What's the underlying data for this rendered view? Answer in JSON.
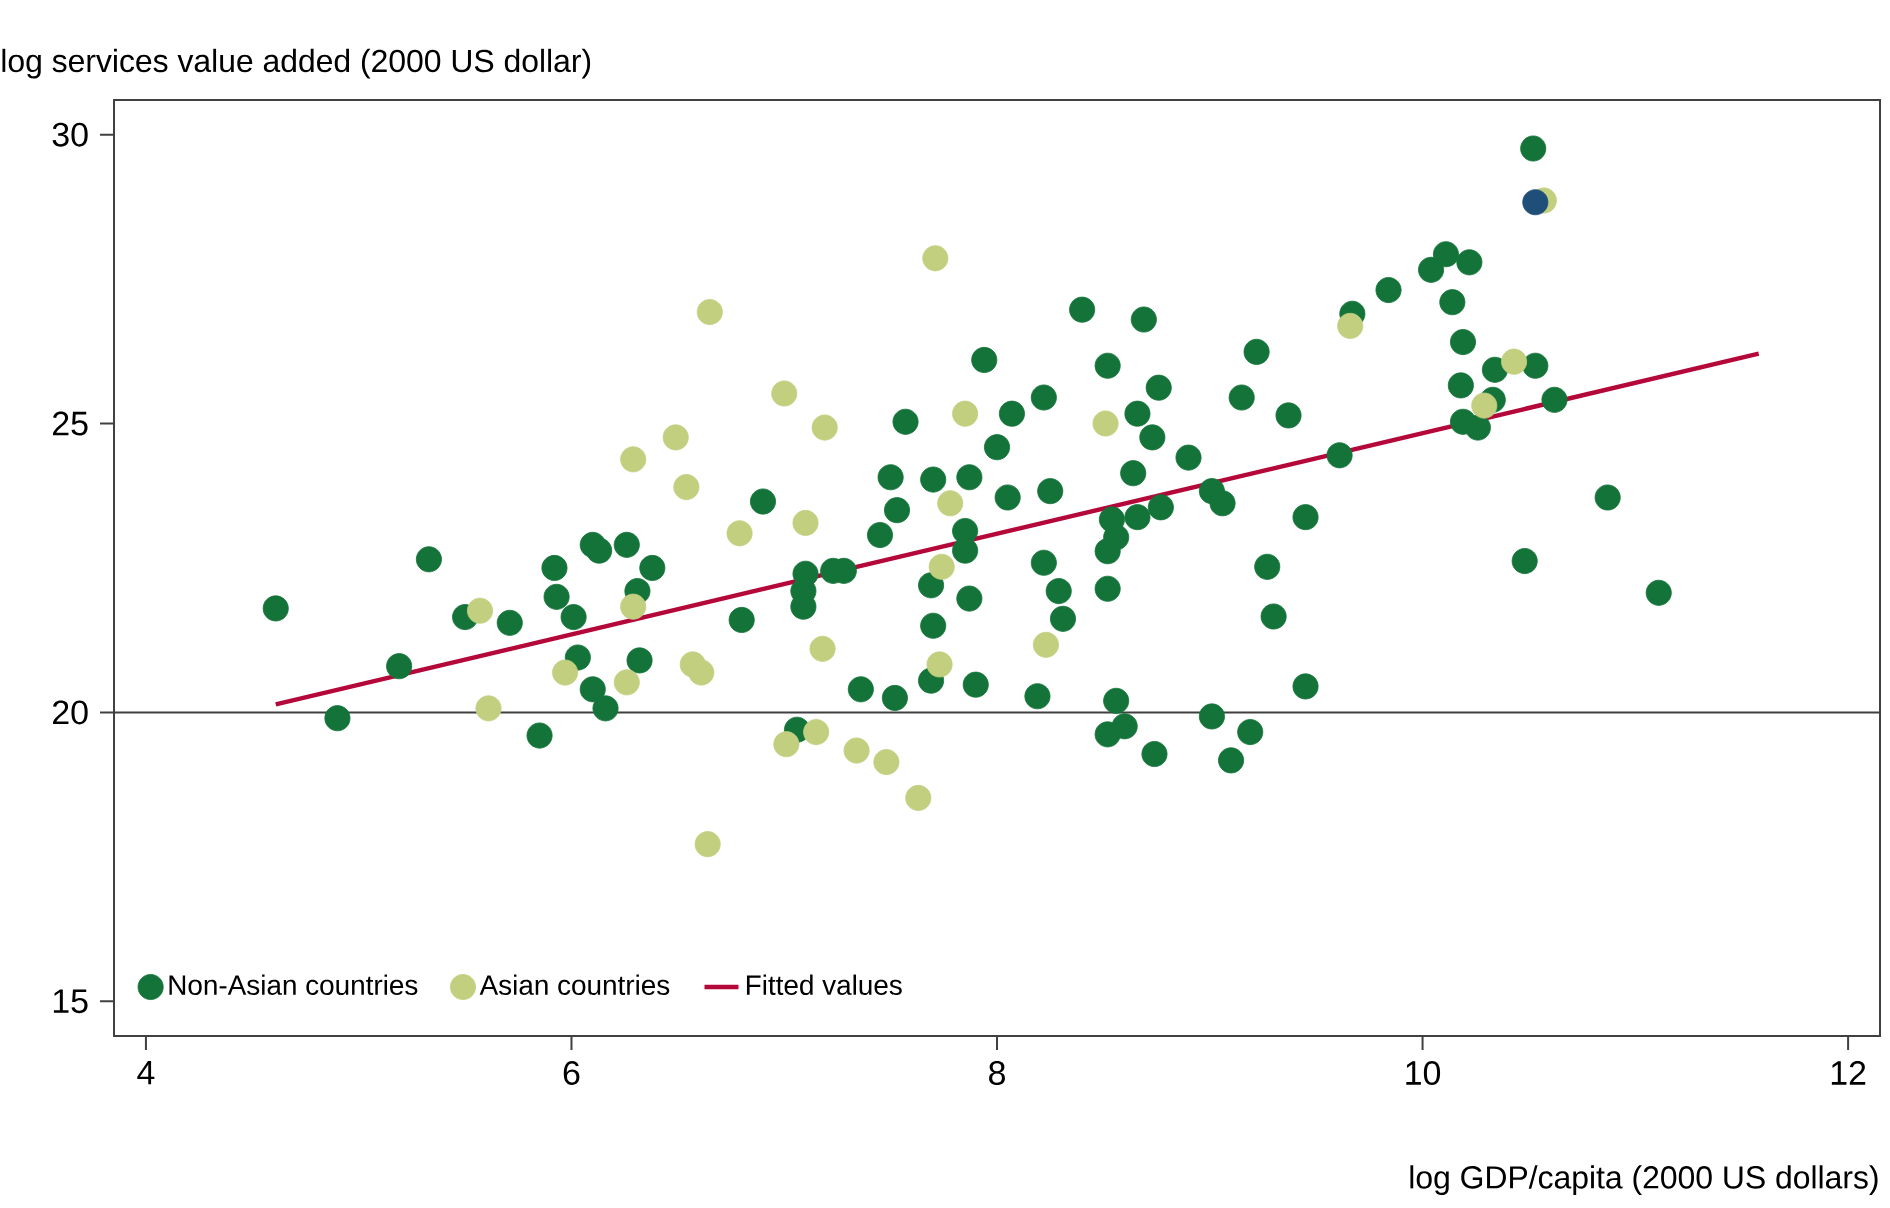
{
  "chart_data": {
    "type": "scatter",
    "xlabel": "log GDP/capita (2000 US dollars)",
    "ylabel": "log services value added (2000 US dollar)",
    "xlim": [
      3.85,
      12.15
    ],
    "ylim": [
      14.4,
      30.6
    ],
    "xticks": [
      4,
      6,
      8,
      10,
      12
    ],
    "yticks": [
      15,
      20,
      25,
      30
    ],
    "legend": "bottom left",
    "marker": "circle",
    "ref_lines": [
      {
        "axis": "y",
        "value": 20,
        "color": "#404040"
      }
    ],
    "series": [
      {
        "name": "Non-Asian countries",
        "color": "#137339",
        "x": [
          4.61,
          4.9,
          5.19,
          5.33,
          5.5,
          5.71,
          5.85,
          5.92,
          5.93,
          6.01,
          6.03,
          6.1,
          6.1,
          6.13,
          6.16,
          6.26,
          6.31,
          6.38,
          6.32,
          6.9,
          6.8,
          7.1,
          7.09,
          7.09,
          7.06,
          7.23,
          7.28,
          7.36,
          7.52,
          7.45,
          7.5,
          7.53,
          7.57,
          7.69,
          7.7,
          7.69,
          7.7,
          7.85,
          7.85,
          7.87,
          7.87,
          7.9,
          7.94,
          8.0,
          8.07,
          8.05,
          8.22,
          8.25,
          8.22,
          8.29,
          8.31,
          8.19,
          8.4,
          8.52,
          8.54,
          8.56,
          8.52,
          8.52,
          8.56,
          8.52,
          8.6,
          8.69,
          8.66,
          8.76,
          8.73,
          8.64,
          8.66,
          8.77,
          8.74,
          8.9,
          9.01,
          9.06,
          9.01,
          9.1,
          9.19,
          9.15,
          9.22,
          9.37,
          9.27,
          9.3,
          9.45,
          9.45,
          9.61,
          9.67,
          9.84,
          10.04,
          10.11,
          10.22,
          10.14,
          10.19,
          10.18,
          10.34,
          10.53,
          10.33,
          10.62,
          10.19,
          10.26,
          10.52,
          10.87,
          10.48,
          11.11
        ],
        "values": [
          21.8,
          19.9,
          20.8,
          22.65,
          21.65,
          21.55,
          19.6,
          22.5,
          22.0,
          21.65,
          20.95,
          20.4,
          22.9,
          22.8,
          20.07,
          22.9,
          22.1,
          22.5,
          20.9,
          23.65,
          21.6,
          22.4,
          22.1,
          21.83,
          19.7,
          22.45,
          22.45,
          20.4,
          20.25,
          23.07,
          24.07,
          23.5,
          25.03,
          22.2,
          21.5,
          20.55,
          24.03,
          23.14,
          22.8,
          21.97,
          24.07,
          20.48,
          26.1,
          24.59,
          25.17,
          23.72,
          25.45,
          23.83,
          22.59,
          22.1,
          21.62,
          20.28,
          26.97,
          26.0,
          23.34,
          23.03,
          22.79,
          22.14,
          20.2,
          19.62,
          19.76,
          26.8,
          25.17,
          25.62,
          24.76,
          24.14,
          23.38,
          23.55,
          19.28,
          24.41,
          23.83,
          23.62,
          19.93,
          19.17,
          19.66,
          25.45,
          26.24,
          25.14,
          22.52,
          21.66,
          23.38,
          20.45,
          24.45,
          26.9,
          27.31,
          27.66,
          27.93,
          27.79,
          27.1,
          26.41,
          25.66,
          25.93,
          26.0,
          25.41,
          25.41,
          25.03,
          24.93,
          29.76,
          23.72,
          22.62,
          22.07
        ]
      },
      {
        "name": "Asian countries",
        "color": "#c2cf7f",
        "x": [
          5.57,
          5.61,
          5.97,
          6.26,
          6.29,
          6.29,
          6.49,
          6.54,
          6.57,
          6.61,
          6.65,
          6.64,
          6.79,
          7.0,
          7.1,
          7.19,
          7.18,
          7.01,
          7.15,
          7.34,
          7.48,
          7.63,
          7.71,
          7.74,
          7.73,
          7.78,
          7.85,
          8.23,
          8.51,
          9.66,
          10.43,
          10.29,
          10.57
        ],
        "values": [
          21.76,
          20.07,
          20.69,
          20.52,
          21.83,
          24.38,
          24.76,
          23.9,
          20.83,
          20.69,
          26.93,
          17.72,
          23.1,
          25.52,
          23.28,
          24.93,
          21.1,
          19.45,
          19.66,
          19.34,
          19.14,
          18.52,
          27.86,
          22.52,
          20.83,
          23.62,
          25.17,
          21.17,
          25.0,
          26.69,
          26.07,
          25.31,
          28.86
        ]
      },
      {
        "color": "#1f4e79",
        "x": [
          10.53
        ],
        "values": [
          28.83
        ]
      },
      {
        "name": "Fitted values",
        "type": "line",
        "color": "#b5083a",
        "marker": "none",
        "line_style": "solid",
        "x": [
          4.61,
          11.58
        ],
        "values": [
          20.14,
          26.21
        ]
      }
    ]
  }
}
